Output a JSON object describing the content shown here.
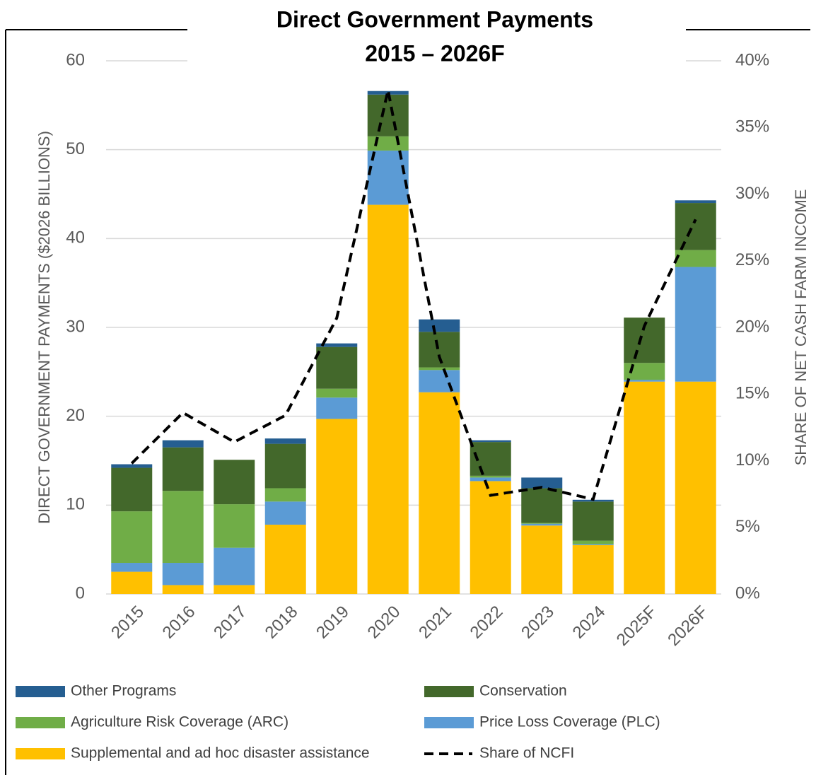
{
  "chart_data": {
    "type": "bar",
    "stacked": true,
    "title": "Direct Government Payments",
    "subtitle": "2015 – 2026F",
    "y_label": "DIRECT GOVERNMENT PAYMENTS ($2026 BILLIONS)",
    "y2_label": "SHARE OF NET CASH FARM INCOME",
    "categories": [
      "2015",
      "2016",
      "2017",
      "2018",
      "2019",
      "2020",
      "2021",
      "2022",
      "2023",
      "2024",
      "2025F",
      "2026F"
    ],
    "series": [
      {
        "name": "Supplemental and ad hoc disaster assistance",
        "color": "#ffc000",
        "type": "bar",
        "values": [
          2.5,
          1.0,
          1.0,
          7.8,
          19.7,
          43.8,
          22.7,
          12.7,
          7.7,
          5.5,
          23.9,
          23.9
        ]
      },
      {
        "name": "Price Loss Coverage (PLC)",
        "color": "#5b9bd5",
        "type": "bar",
        "values": [
          1.0,
          2.5,
          4.2,
          2.6,
          2.4,
          6.1,
          2.5,
          0.4,
          0.2,
          0.1,
          0.2,
          12.9
        ]
      },
      {
        "name": "Agriculture Risk Coverage (ARC)",
        "color": "#70ad47",
        "type": "bar",
        "values": [
          5.8,
          8.1,
          4.9,
          1.5,
          1.0,
          1.6,
          0.3,
          0.2,
          0.1,
          0.4,
          1.9,
          1.9
        ]
      },
      {
        "name": "Conservation",
        "color": "#43682b",
        "type": "bar",
        "values": [
          4.9,
          4.9,
          5.0,
          5.0,
          4.7,
          4.7,
          4.0,
          3.8,
          3.9,
          4.4,
          5.1,
          5.3
        ]
      },
      {
        "name": "Other Programs",
        "color": "#255e91",
        "type": "bar",
        "values": [
          0.4,
          0.8,
          0.0,
          0.6,
          0.4,
          0.4,
          1.4,
          0.2,
          1.2,
          0.2,
          0.0,
          0.3
        ]
      },
      {
        "name": "Share of NCFI",
        "color": "#000000",
        "type": "line",
        "axis": "y2",
        "dashed": true,
        "values": [
          9.8,
          13.6,
          11.4,
          13.4,
          20.7,
          37.8,
          17.8,
          7.4,
          8.0,
          7.1,
          20.1,
          28.1
        ]
      }
    ],
    "ylim": [
      0,
      60
    ],
    "yticks": [
      0,
      10,
      20,
      30,
      40,
      50,
      60
    ],
    "y2lim": [
      0,
      40
    ],
    "y2ticks": [
      {
        "value": 0,
        "label": "0%"
      },
      {
        "value": 5,
        "label": "5%"
      },
      {
        "value": 10,
        "label": "10%"
      },
      {
        "value": 15,
        "label": "15%"
      },
      {
        "value": 20,
        "label": "20%"
      },
      {
        "value": 25,
        "label": "25%"
      },
      {
        "value": 30,
        "label": "30%"
      },
      {
        "value": 35,
        "label": "35%"
      },
      {
        "value": 40,
        "label": "40%"
      }
    ],
    "grid": true,
    "legend": "bottom"
  }
}
